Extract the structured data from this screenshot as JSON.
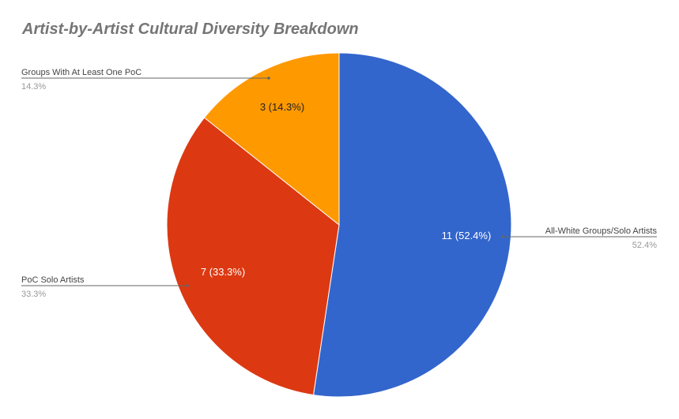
{
  "chart_data": {
    "type": "pie",
    "title": "Artist-by-Artist Cultural Diversity Breakdown",
    "slices": [
      {
        "name": "All-White Groups/Solo Artists",
        "value": 11,
        "percent_label": "52.4%",
        "data_label": "11 (52.4%)",
        "color": "#3366CC",
        "label_color": "#ffffff"
      },
      {
        "name": "PoC Solo Artists",
        "value": 7,
        "percent_label": "33.3%",
        "data_label": "7 (33.3%)",
        "color": "#DC3912",
        "label_color": "#ffffff"
      },
      {
        "name": "Groups With At Least One PoC",
        "value": 3,
        "percent_label": "14.3%",
        "data_label": "3 (14.3%)",
        "color": "#FF9900",
        "label_color": "#222222"
      }
    ],
    "start_angle_deg": 0,
    "direction": "clockwise",
    "legend": "labeled callouts"
  },
  "colors": {
    "title": "#757575",
    "callout_name": "#444444",
    "callout_percent": "#999999",
    "leader_line": "#666666"
  }
}
